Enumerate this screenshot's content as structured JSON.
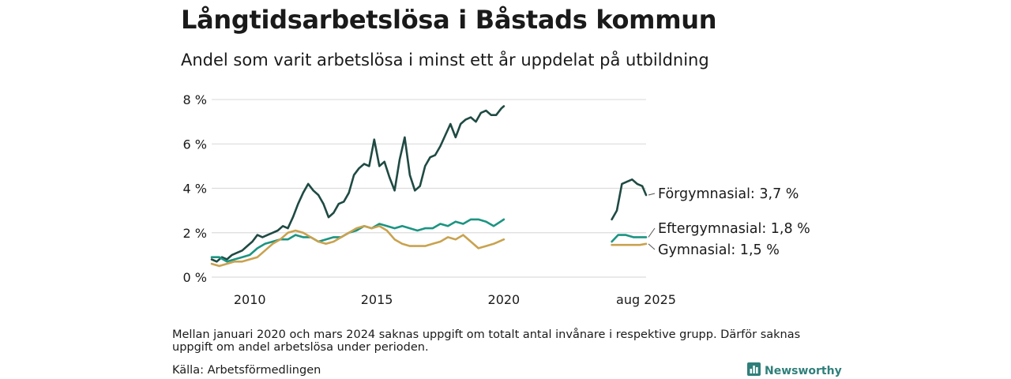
{
  "title": "Långtidsarbetslösa i Båstads kommun",
  "subtitle": "Andel som varit arbetslösa i minst ett år uppdelat på utbildning",
  "note": "Mellan januari 2020 och mars 2024 saknas uppgift om totalt antal invånare i respektive grupp. Därför saknas uppgift om andel arbetslösa under perioden.",
  "source": "Källa: Arbetsförmedlingen",
  "brand": {
    "label": "Newsworthy",
    "icon": "newsworthy-logo-icon"
  },
  "colors": {
    "forgymnasial": "#1f4a43",
    "eftergymnasial": "#1b9482",
    "gymnasial": "#c9a24f",
    "grid": "#dcdcdc",
    "text": "#1a1a1a"
  },
  "chart_data": {
    "type": "line",
    "title": "Långtidsarbetslösa i Båstads kommun",
    "subtitle": "Andel som varit arbetslösa i minst ett år uppdelat på utbildning",
    "xlabel": "",
    "ylabel": "",
    "ylim": [
      0,
      8.5
    ],
    "yticks": [
      0,
      2,
      4,
      6,
      8
    ],
    "ytick_labels": [
      "0 %",
      "2 %",
      "4 %",
      "6 %",
      "8 %"
    ],
    "xticks": [
      2010,
      2015,
      2020
    ],
    "xtick_labels": [
      "2010",
      "2015",
      "2020"
    ],
    "extra_xtick_label": "aug 2025",
    "grid": true,
    "gap_note": "Mellan januari 2020 och mars 2024 saknas uppgift",
    "series": [
      {
        "name": "Förgymnasial",
        "end_label": "Förgymnasial: 3,7 %",
        "color": "#1f4a43",
        "segments": [
          [
            [
              2008.5,
              0.8
            ],
            [
              2008.7,
              0.7
            ],
            [
              2008.9,
              0.9
            ],
            [
              2009.1,
              0.8
            ],
            [
              2009.3,
              1.0
            ],
            [
              2009.5,
              1.1
            ],
            [
              2009.7,
              1.2
            ],
            [
              2009.9,
              1.4
            ],
            [
              2010.1,
              1.6
            ],
            [
              2010.3,
              1.9
            ],
            [
              2010.5,
              1.8
            ],
            [
              2010.7,
              1.9
            ],
            [
              2010.9,
              2.0
            ],
            [
              2011.1,
              2.1
            ],
            [
              2011.3,
              2.3
            ],
            [
              2011.5,
              2.2
            ],
            [
              2011.7,
              2.7
            ],
            [
              2011.9,
              3.3
            ],
            [
              2012.1,
              3.8
            ],
            [
              2012.3,
              4.2
            ],
            [
              2012.5,
              3.9
            ],
            [
              2012.7,
              3.7
            ],
            [
              2012.9,
              3.3
            ],
            [
              2013.1,
              2.7
            ],
            [
              2013.3,
              2.9
            ],
            [
              2013.5,
              3.3
            ],
            [
              2013.7,
              3.4
            ],
            [
              2013.9,
              3.8
            ],
            [
              2014.1,
              4.6
            ],
            [
              2014.3,
              4.9
            ],
            [
              2014.5,
              5.1
            ],
            [
              2014.7,
              5.0
            ],
            [
              2014.9,
              6.2
            ],
            [
              2015.1,
              5.0
            ],
            [
              2015.3,
              5.2
            ],
            [
              2015.5,
              4.5
            ],
            [
              2015.7,
              3.9
            ],
            [
              2015.9,
              5.3
            ],
            [
              2016.1,
              6.3
            ],
            [
              2016.3,
              4.6
            ],
            [
              2016.5,
              3.9
            ],
            [
              2016.7,
              4.1
            ],
            [
              2016.9,
              5.0
            ],
            [
              2017.1,
              5.4
            ],
            [
              2017.3,
              5.5
            ],
            [
              2017.5,
              5.9
            ],
            [
              2017.7,
              6.4
            ],
            [
              2017.9,
              6.9
            ],
            [
              2018.1,
              6.3
            ],
            [
              2018.3,
              6.9
            ],
            [
              2018.5,
              7.1
            ],
            [
              2018.7,
              7.2
            ],
            [
              2018.9,
              7.0
            ],
            [
              2019.1,
              7.4
            ],
            [
              2019.3,
              7.5
            ],
            [
              2019.5,
              7.3
            ],
            [
              2019.7,
              7.3
            ],
            [
              2019.9,
              7.6
            ],
            [
              2020.0,
              7.7
            ]
          ],
          [
            [
              2024.25,
              2.6
            ],
            [
              2024.45,
              3.0
            ],
            [
              2024.65,
              4.2
            ],
            [
              2024.85,
              4.3
            ],
            [
              2025.05,
              4.4
            ],
            [
              2025.25,
              4.2
            ],
            [
              2025.45,
              4.1
            ],
            [
              2025.6,
              3.7
            ]
          ]
        ]
      },
      {
        "name": "Eftergymnasial",
        "end_label": "Eftergymnasial: 1,8 %",
        "color": "#1b9482",
        "segments": [
          [
            [
              2008.5,
              0.9
            ],
            [
              2008.8,
              0.9
            ],
            [
              2009.1,
              0.7
            ],
            [
              2009.4,
              0.8
            ],
            [
              2009.7,
              0.9
            ],
            [
              2010.0,
              1.0
            ],
            [
              2010.3,
              1.3
            ],
            [
              2010.6,
              1.5
            ],
            [
              2010.9,
              1.6
            ],
            [
              2011.2,
              1.7
            ],
            [
              2011.5,
              1.7
            ],
            [
              2011.8,
              1.9
            ],
            [
              2012.1,
              1.8
            ],
            [
              2012.4,
              1.8
            ],
            [
              2012.7,
              1.6
            ],
            [
              2013.0,
              1.7
            ],
            [
              2013.3,
              1.8
            ],
            [
              2013.6,
              1.8
            ],
            [
              2013.9,
              2.0
            ],
            [
              2014.2,
              2.1
            ],
            [
              2014.5,
              2.3
            ],
            [
              2014.8,
              2.2
            ],
            [
              2015.1,
              2.4
            ],
            [
              2015.4,
              2.3
            ],
            [
              2015.7,
              2.2
            ],
            [
              2016.0,
              2.3
            ],
            [
              2016.3,
              2.2
            ],
            [
              2016.6,
              2.1
            ],
            [
              2016.9,
              2.2
            ],
            [
              2017.2,
              2.2
            ],
            [
              2017.5,
              2.4
            ],
            [
              2017.8,
              2.3
            ],
            [
              2018.1,
              2.5
            ],
            [
              2018.4,
              2.4
            ],
            [
              2018.7,
              2.6
            ],
            [
              2019.0,
              2.6
            ],
            [
              2019.3,
              2.5
            ],
            [
              2019.6,
              2.3
            ],
            [
              2020.0,
              2.6
            ]
          ],
          [
            [
              2024.25,
              1.6
            ],
            [
              2024.5,
              1.9
            ],
            [
              2024.8,
              1.9
            ],
            [
              2025.1,
              1.8
            ],
            [
              2025.35,
              1.8
            ],
            [
              2025.6,
              1.8
            ]
          ]
        ]
      },
      {
        "name": "Gymnasial",
        "end_label": "Gymnasial: 1,5 %",
        "color": "#c9a24f",
        "segments": [
          [
            [
              2008.5,
              0.6
            ],
            [
              2008.8,
              0.5
            ],
            [
              2009.1,
              0.6
            ],
            [
              2009.4,
              0.7
            ],
            [
              2009.7,
              0.7
            ],
            [
              2010.0,
              0.8
            ],
            [
              2010.3,
              0.9
            ],
            [
              2010.6,
              1.2
            ],
            [
              2010.9,
              1.5
            ],
            [
              2011.2,
              1.7
            ],
            [
              2011.5,
              2.0
            ],
            [
              2011.8,
              2.1
            ],
            [
              2012.1,
              2.0
            ],
            [
              2012.4,
              1.8
            ],
            [
              2012.7,
              1.6
            ],
            [
              2013.0,
              1.5
            ],
            [
              2013.3,
              1.6
            ],
            [
              2013.6,
              1.8
            ],
            [
              2013.9,
              2.0
            ],
            [
              2014.2,
              2.2
            ],
            [
              2014.5,
              2.3
            ],
            [
              2014.8,
              2.2
            ],
            [
              2015.1,
              2.3
            ],
            [
              2015.4,
              2.1
            ],
            [
              2015.7,
              1.7
            ],
            [
              2016.0,
              1.5
            ],
            [
              2016.3,
              1.4
            ],
            [
              2016.6,
              1.4
            ],
            [
              2016.9,
              1.4
            ],
            [
              2017.2,
              1.5
            ],
            [
              2017.5,
              1.6
            ],
            [
              2017.8,
              1.8
            ],
            [
              2018.1,
              1.7
            ],
            [
              2018.4,
              1.9
            ],
            [
              2018.7,
              1.6
            ],
            [
              2019.0,
              1.3
            ],
            [
              2019.3,
              1.4
            ],
            [
              2019.6,
              1.5
            ],
            [
              2020.0,
              1.7
            ]
          ],
          [
            [
              2024.25,
              1.45
            ],
            [
              2024.5,
              1.45
            ],
            [
              2024.8,
              1.45
            ],
            [
              2025.1,
              1.45
            ],
            [
              2025.35,
              1.45
            ],
            [
              2025.6,
              1.5
            ]
          ]
        ]
      }
    ]
  }
}
